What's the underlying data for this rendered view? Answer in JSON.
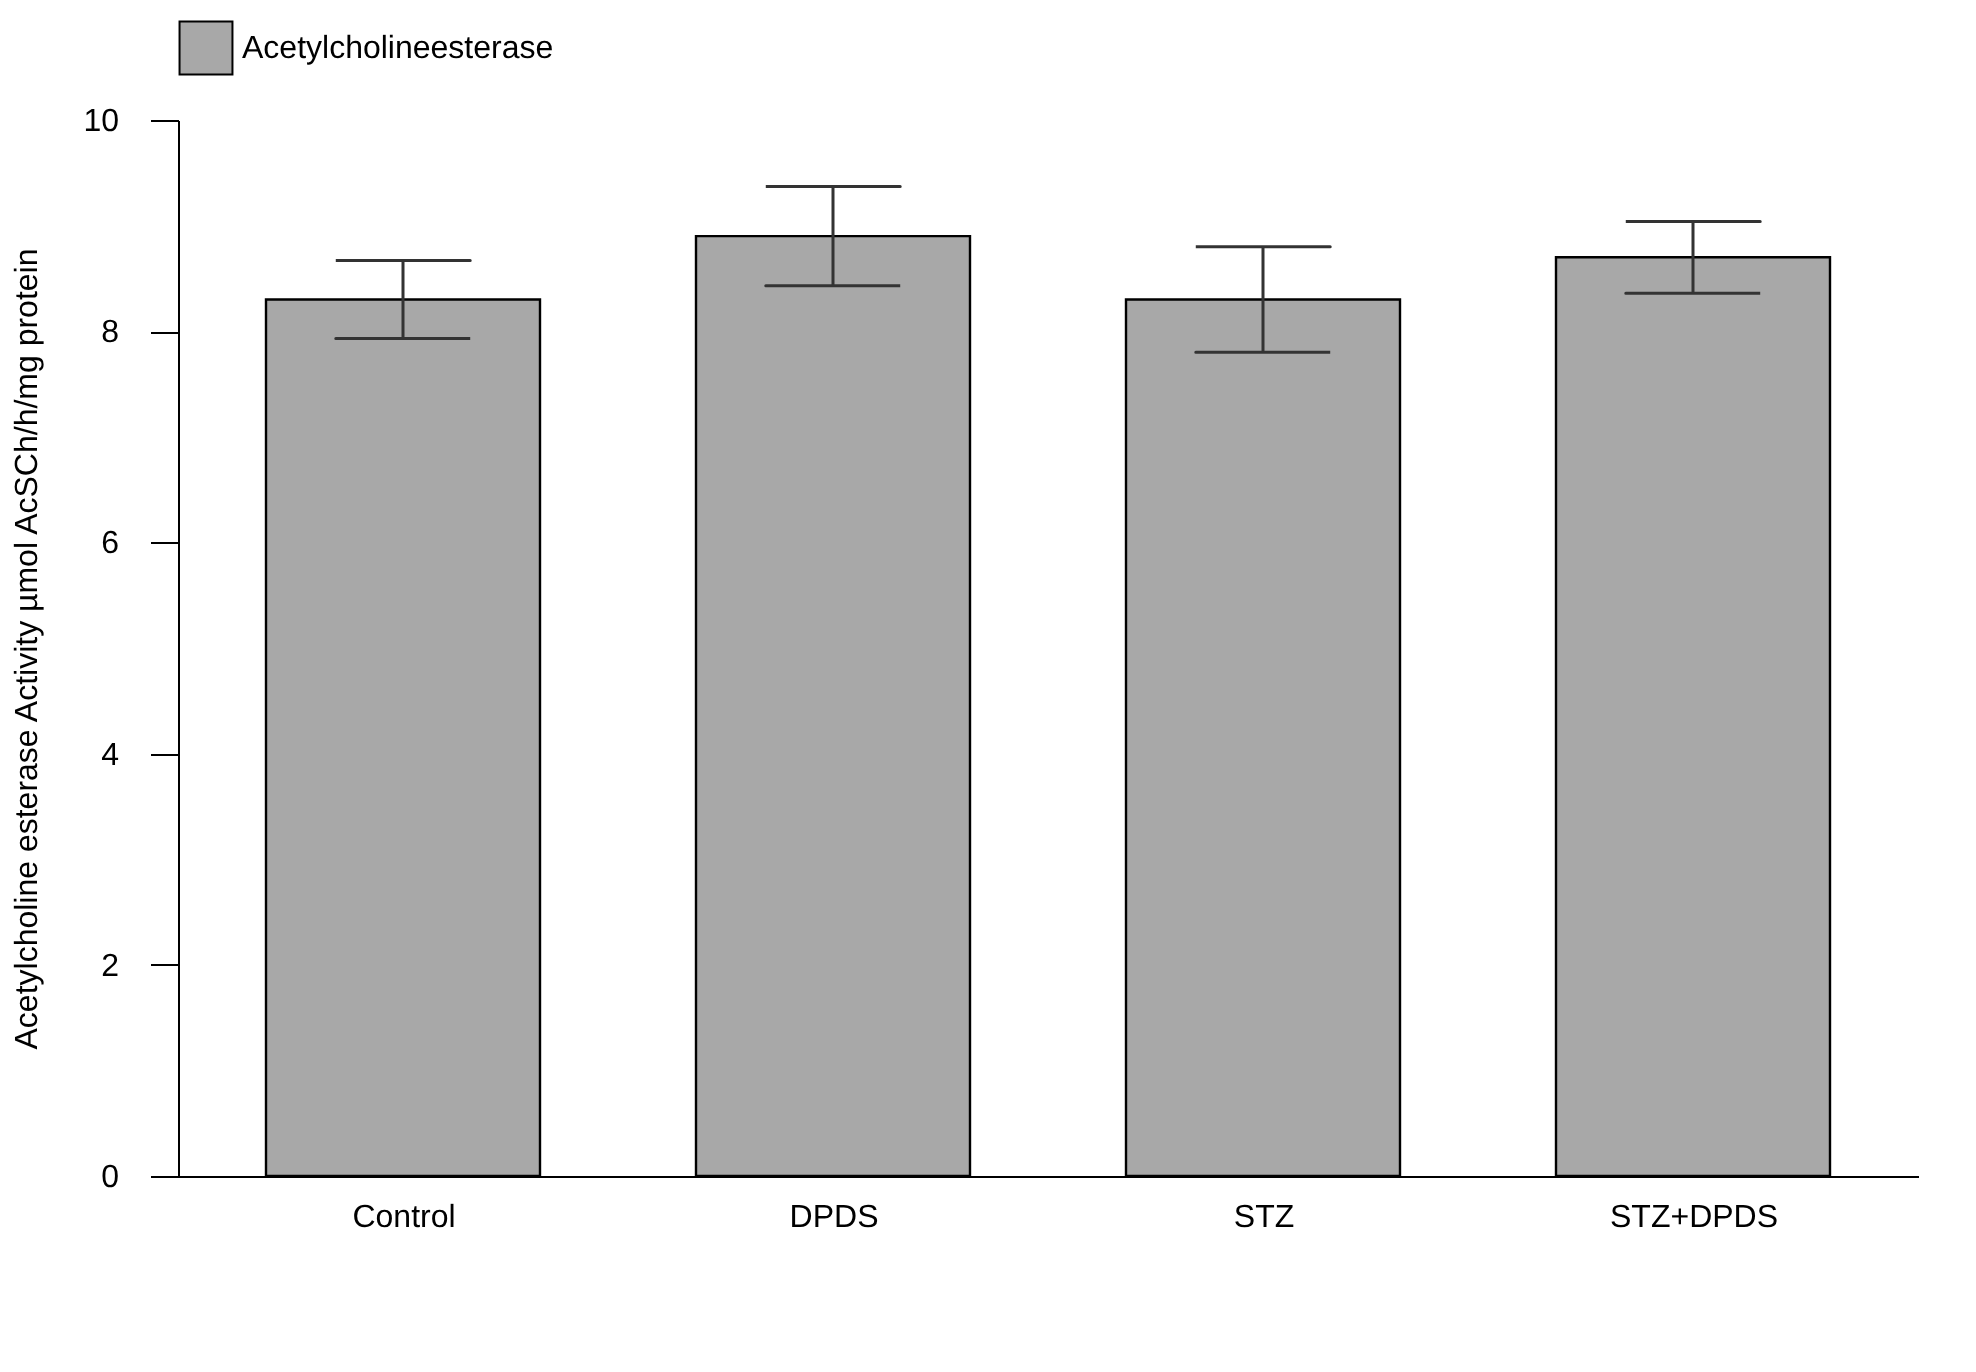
{
  "chart_data": {
    "type": "bar",
    "ylabel": "Acetylcholine esterase Activity µmol AcSCh/h/mg protein",
    "categories": [
      "Control",
      "DPDS",
      "STZ",
      "STZ+DPDS"
    ],
    "series": [
      {
        "name": "Acetylcholineesterase",
        "color": "#a8a8a8",
        "values": [
          8.3,
          8.9,
          8.3,
          8.7
        ],
        "errors": [
          0.37,
          0.47,
          0.5,
          0.34
        ]
      }
    ],
    "ylim": [
      0,
      10
    ],
    "yticks": [
      0,
      2,
      4,
      6,
      8,
      10
    ],
    "grid": false,
    "legend": "top left"
  }
}
